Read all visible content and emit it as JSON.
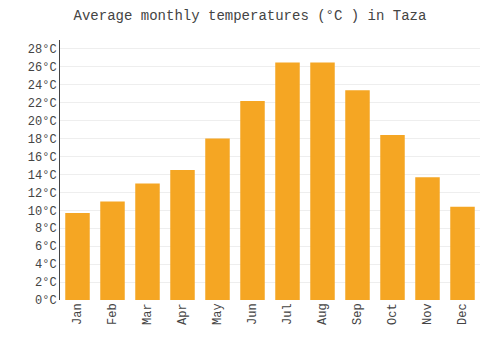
{
  "chart_data": {
    "type": "bar",
    "title": "Average monthly temperatures (°C ) in Taza",
    "categories": [
      "Jan",
      "Feb",
      "Mar",
      "Apr",
      "May",
      "Jun",
      "Jul",
      "Aug",
      "Sep",
      "Oct",
      "Nov",
      "Dec"
    ],
    "values": [
      9.7,
      11.0,
      13.0,
      14.5,
      18.0,
      22.2,
      26.5,
      26.5,
      23.4,
      18.4,
      13.7,
      10.4
    ],
    "color": "#F5A623",
    "ylim": [
      0,
      29
    ],
    "yticks": [
      {
        "value": 0,
        "label": "0°C"
      },
      {
        "value": 2,
        "label": "2°C"
      },
      {
        "value": 4,
        "label": "4°C"
      },
      {
        "value": 6,
        "label": "6°C"
      },
      {
        "value": 8,
        "label": "8°C"
      },
      {
        "value": 10,
        "label": "10°C"
      },
      {
        "value": 12,
        "label": "12°C"
      },
      {
        "value": 14,
        "label": "14°C"
      },
      {
        "value": 16,
        "label": "16°C"
      },
      {
        "value": 18,
        "label": "18°C"
      },
      {
        "value": 20,
        "label": "20°C"
      },
      {
        "value": 22,
        "label": "22°C"
      },
      {
        "value": 24,
        "label": "24°C"
      },
      {
        "value": 26,
        "label": "26°C"
      },
      {
        "value": 28,
        "label": "28°C"
      }
    ],
    "grid": true
  }
}
